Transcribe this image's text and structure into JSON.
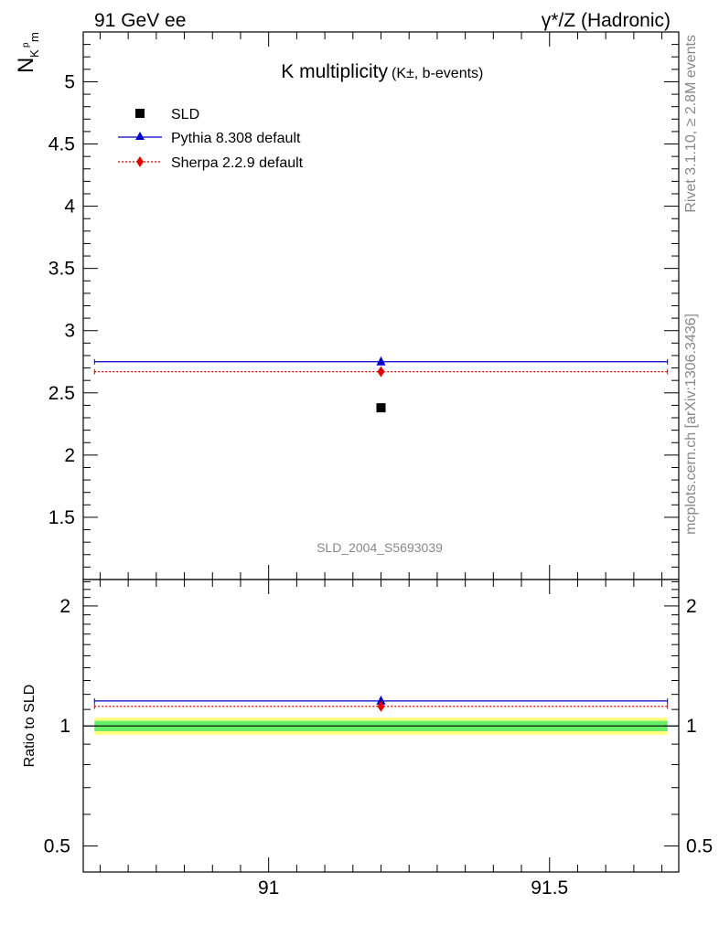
{
  "header": {
    "left": "91 GeV ee",
    "right": "γ*/Z (Hadronic)"
  },
  "side_labels": {
    "rivet": "Rivet 3.1.10, ≥ 2.8M events",
    "mcplots": "mcplots.cern.ch [arXiv:1306.3436]"
  },
  "watermark": "SLD_2004_S5693039",
  "colors": {
    "data": "#000000",
    "pythia": "#0000cc",
    "sherpa": "#e00000",
    "band_inner": "#66ee66",
    "band_outer": "#ffff80"
  },
  "chart_data": [
    {
      "type": "scatter",
      "panel": "main",
      "title": "K multiplicity",
      "title_suffix": "(K±, b-events)",
      "ylabel": "N",
      "ylabel_sub": "K",
      "ylabel_sup": "p",
      "ylabel_sub2": "m",
      "xlim": [
        90.67,
        91.73
      ],
      "ylim": [
        1.0,
        5.4
      ],
      "yticks": [
        1.5,
        2,
        2.5,
        3,
        3.5,
        4,
        4.5,
        5
      ],
      "ytick_labels": [
        "1.5",
        "2",
        "2.5",
        "3",
        "3.5",
        "4",
        "4.5",
        "5"
      ],
      "legend_position": "top-left",
      "series": [
        {
          "name": "SLD",
          "marker": "square",
          "x": [
            91.2
          ],
          "y": [
            2.38
          ]
        },
        {
          "name": "Pythia 8.308 default",
          "marker": "triangle",
          "x": [
            91.2
          ],
          "y": [
            2.75
          ],
          "x_range": [
            90.69,
            91.71
          ]
        },
        {
          "name": "Sherpa 2.2.9 default",
          "marker": "diamond",
          "x": [
            91.2
          ],
          "y": [
            2.67
          ],
          "x_range": [
            90.69,
            91.71
          ]
        }
      ]
    },
    {
      "type": "scatter",
      "panel": "ratio",
      "ylabel": "Ratio to SLD",
      "xlim": [
        90.67,
        91.73
      ],
      "ylim": [
        0.43,
        2.33
      ],
      "yticks": [
        0.5,
        1,
        2
      ],
      "ytick_labels": [
        "0.5",
        "1",
        "2"
      ],
      "xticks": [
        91,
        91.5
      ],
      "xtick_labels": [
        "91",
        "91.5"
      ],
      "band_inner": [
        0.97,
        1.03
      ],
      "band_outer": [
        0.95,
        1.05
      ],
      "series": [
        {
          "name": "Pythia 8.308 default",
          "marker": "triangle",
          "x": [
            91.2
          ],
          "y": [
            1.155
          ]
        },
        {
          "name": "Sherpa 2.2.9 default",
          "marker": "diamond",
          "x": [
            91.2
          ],
          "y": [
            1.12
          ]
        }
      ]
    }
  ]
}
